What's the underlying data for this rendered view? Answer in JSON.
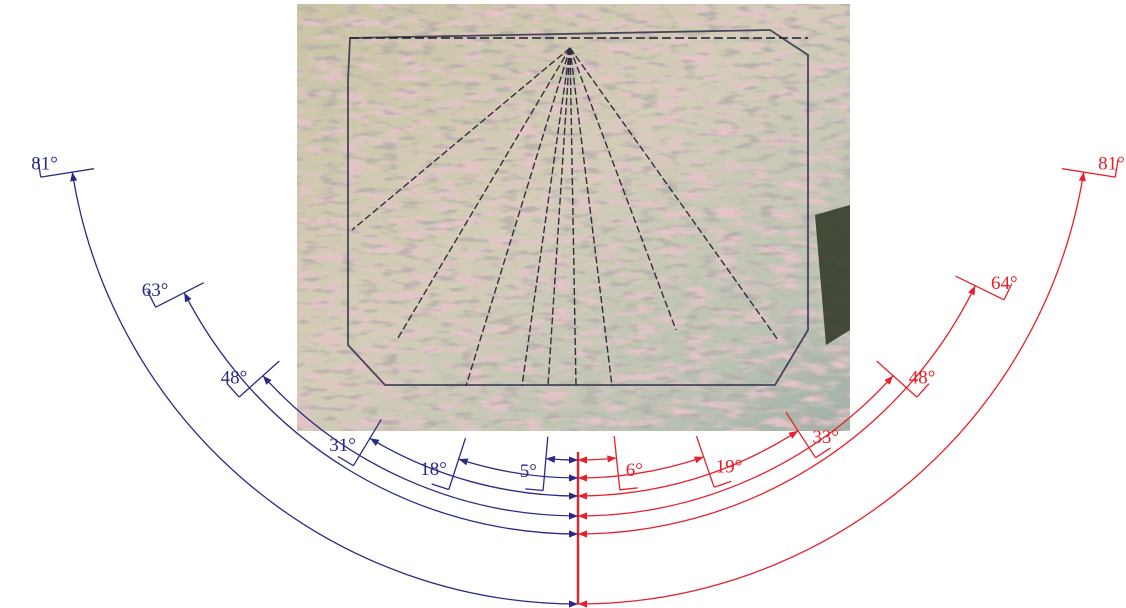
{
  "diagram": {
    "center_line_color": "#e8202a",
    "left_color": "#2a2a86",
    "right_color": "#e8202a",
    "left_angles": [
      {
        "value": 5,
        "label": "5°"
      },
      {
        "value": 18,
        "label": "18°"
      },
      {
        "value": 31,
        "label": "31°"
      },
      {
        "value": 48,
        "label": "48°"
      },
      {
        "value": 63,
        "label": "63°"
      },
      {
        "value": 81,
        "label": "81°"
      }
    ],
    "right_angles": [
      {
        "value": 6,
        "label": "6°"
      },
      {
        "value": 19,
        "label": "19°"
      },
      {
        "value": 33,
        "label": "33°"
      },
      {
        "value": 48,
        "label": "48°"
      },
      {
        "value": 64,
        "label": "64°"
      },
      {
        "value": 81,
        "label": "81°"
      }
    ]
  }
}
